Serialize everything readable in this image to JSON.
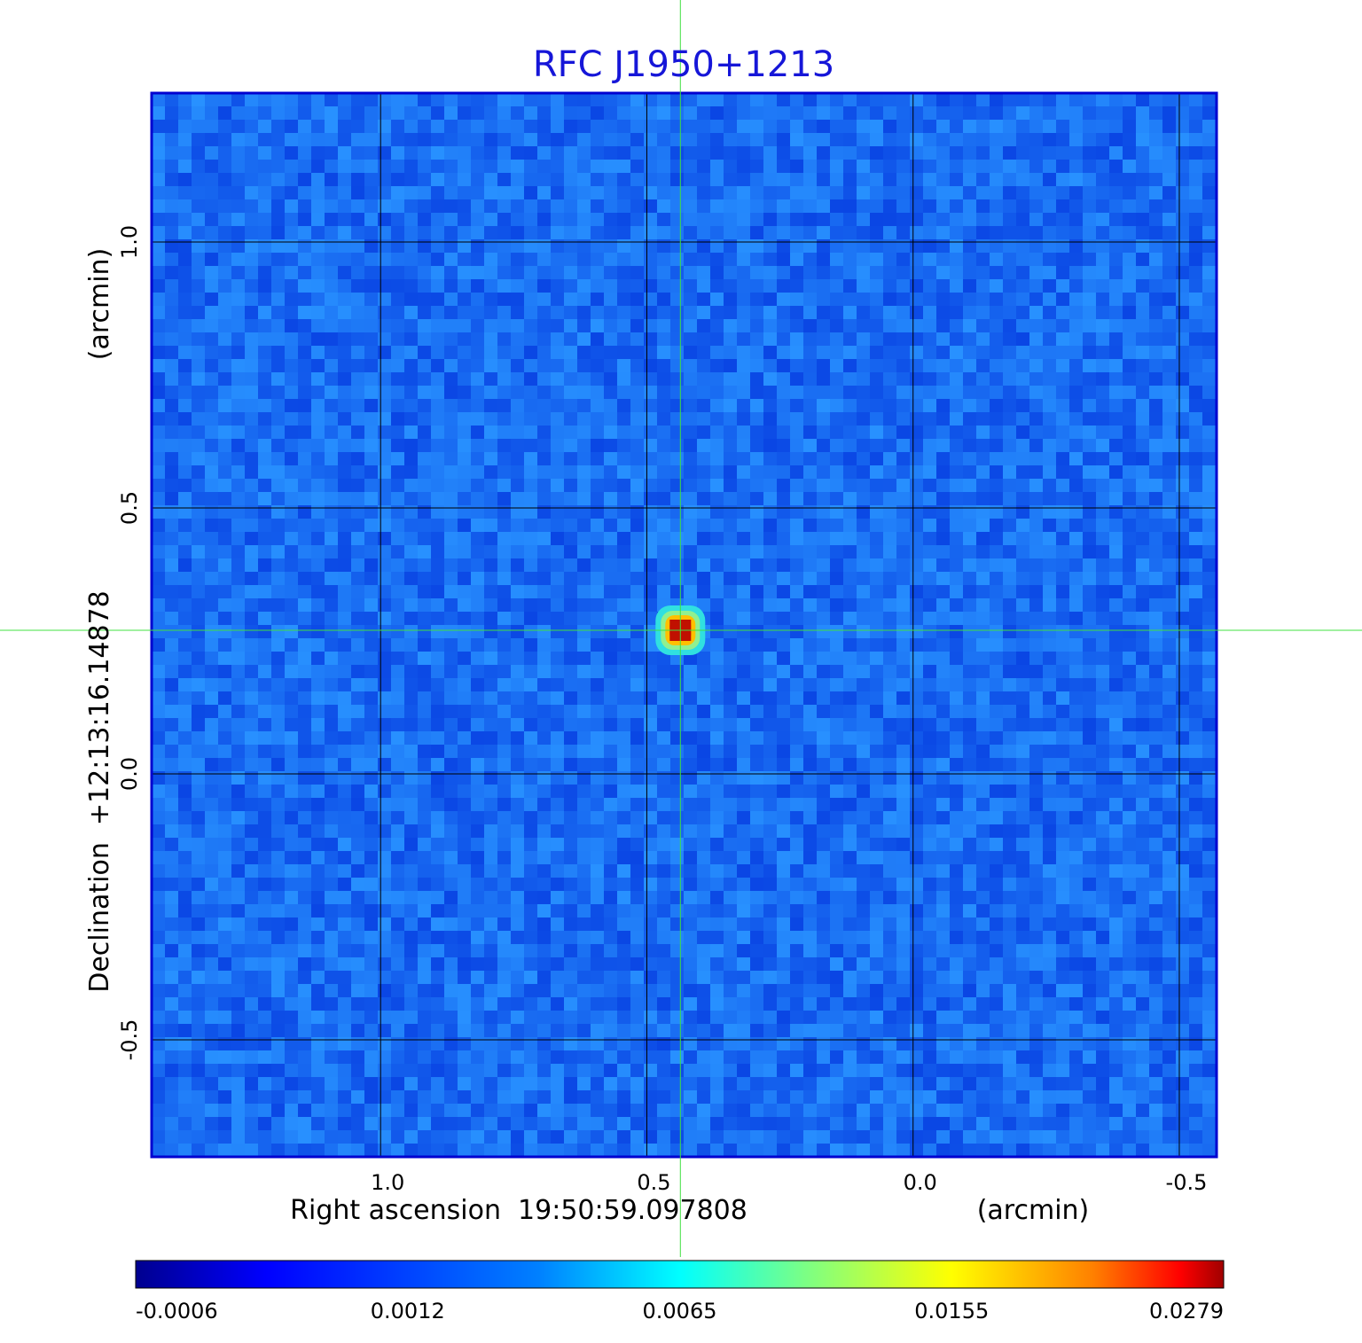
{
  "chart_data": {
    "type": "image",
    "title": "RFC J1950+1213",
    "x_label": "Right ascension  19:50:59.097808",
    "x_unit": "(arcmin)",
    "y_label": "Declination  +12:13:16.14878",
    "y_unit": "(arcmin)",
    "xlim": [
      1.43,
      -0.57
    ],
    "ylim": [
      -0.72,
      1.28
    ],
    "xticks": [
      {
        "value": 1,
        "label": "1.0"
      },
      0.5,
      {
        "value": 0,
        "label": "0.0"
      },
      -0.5
    ],
    "yticks": [
      -0.5,
      {
        "value": 0,
        "label": "0.0"
      },
      0.5,
      {
        "value": 1,
        "label": "1.0"
      }
    ],
    "grid": true,
    "source": {
      "x": 0.437,
      "y": 0.27,
      "peak": 0.0279
    },
    "colorbar_ticks": [
      -0.0006,
      0.0012,
      0.0065,
      0.0155,
      0.0279
    ]
  }
}
